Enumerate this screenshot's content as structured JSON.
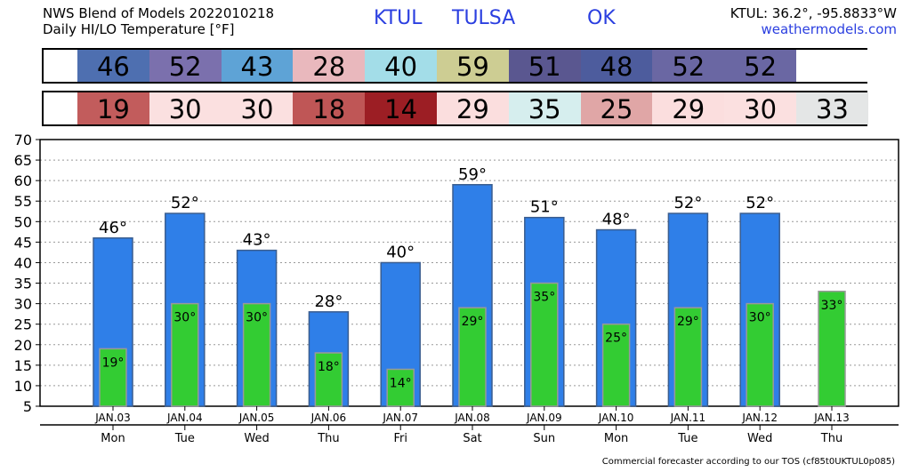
{
  "header": {
    "title_line1": "NWS Blend of Models 2022010218",
    "title_line2": "Daily HI/LO Temperature [°F]",
    "station": "KTUL",
    "city": "TULSA",
    "state": "OK",
    "coords": "KTUL: 36.2°, -95.8833°W",
    "site": "weathermodels.com"
  },
  "footer": "Commercial forecaster according to our TOS (cf85t0UKTUL0p085)",
  "colors": {
    "high_bar": "#2f7fe8",
    "low_bar": "#33cc33"
  },
  "high_row": [
    {
      "value": "46",
      "color": "#4e6fb0"
    },
    {
      "value": "52",
      "color": "#7b70ad"
    },
    {
      "value": "43",
      "color": "#5ea3d6"
    },
    {
      "value": "28",
      "color": "#e9b8bd"
    },
    {
      "value": "40",
      "color": "#a3dde8"
    },
    {
      "value": "59",
      "color": "#cdcd93"
    },
    {
      "value": "51",
      "color": "#5a5790"
    },
    {
      "value": "48",
      "color": "#4d5c9d"
    },
    {
      "value": "52",
      "color": "#6a67a3"
    },
    {
      "value": "52",
      "color": "#6a67a3"
    },
    {
      "value": "",
      "color": "#ffffff"
    }
  ],
  "low_row": [
    {
      "value": "19",
      "color": "#c25c5c"
    },
    {
      "value": "30",
      "color": "#fbe0e0"
    },
    {
      "value": "30",
      "color": "#fbe0e0"
    },
    {
      "value": "18",
      "color": "#bf5656"
    },
    {
      "value": "14",
      "color": "#9c1e24"
    },
    {
      "value": "29",
      "color": "#fbdede"
    },
    {
      "value": "35",
      "color": "#d6eeee"
    },
    {
      "value": "25",
      "color": "#e0a6a6"
    },
    {
      "value": "29",
      "color": "#fbdede"
    },
    {
      "value": "30",
      "color": "#fbe0e0"
    },
    {
      "value": "33",
      "color": "#e4e6e6"
    }
  ],
  "chart_data": {
    "type": "bar",
    "categories": [
      "JAN.03",
      "JAN.04",
      "JAN.05",
      "JAN.06",
      "JAN.07",
      "JAN.08",
      "JAN.09",
      "JAN.10",
      "JAN.11",
      "JAN.12",
      "JAN.13"
    ],
    "weekdays": [
      "Mon",
      "Tue",
      "Wed",
      "Thu",
      "Fri",
      "Sat",
      "Sun",
      "Mon",
      "Tue",
      "Wed",
      "Thu"
    ],
    "series": [
      {
        "values": [
          46,
          52,
          43,
          28,
          40,
          59,
          51,
          48,
          52,
          52,
          null
        ]
      },
      {
        "values": [
          19,
          30,
          30,
          18,
          14,
          29,
          35,
          25,
          29,
          30,
          33
        ]
      }
    ],
    "high_labels": [
      "46°",
      "52°",
      "43°",
      "28°",
      "40°",
      "59°",
      "51°",
      "48°",
      "52°",
      "52°",
      ""
    ],
    "low_labels": [
      "19°",
      "30°",
      "30°",
      "18°",
      "14°",
      "29°",
      "35°",
      "25°",
      "29°",
      "30°",
      "33°"
    ],
    "ylim": [
      5,
      70
    ],
    "yticks": [
      5,
      10,
      15,
      20,
      25,
      30,
      35,
      40,
      45,
      50,
      55,
      60,
      65,
      70
    ],
    "grid": true
  }
}
